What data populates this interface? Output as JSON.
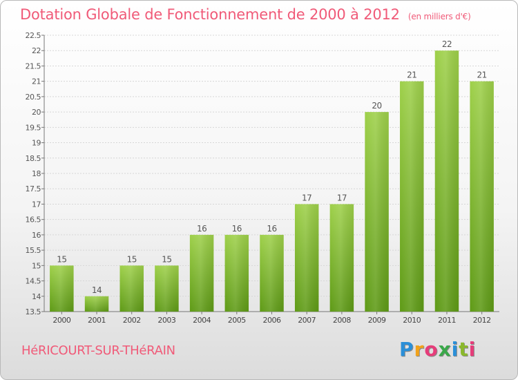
{
  "title": "Dotation Globale de Fonctionnement de 2000 à 2012",
  "unit": "(en milliers d'€)",
  "commune": "HéRICOURT-SUR-THéRAIN",
  "logo": {
    "letters": [
      "P",
      "r",
      "o",
      "x",
      "i",
      "t",
      "i"
    ],
    "colors": [
      "#2a8fd8",
      "#f2a21a",
      "#e63d7a",
      "#3aa84a",
      "#2a8fd8",
      "#8ab82c",
      "#e63d7a"
    ]
  },
  "colors": {
    "bar_top": "#9ed04a",
    "bar_bottom": "#5e9a16",
    "title": "#f05a78",
    "axis": "#777777"
  },
  "chart_data": {
    "type": "bar",
    "categories": [
      "2000",
      "2001",
      "2002",
      "2003",
      "2004",
      "2005",
      "2006",
      "2007",
      "2008",
      "2009",
      "2010",
      "2011",
      "2012"
    ],
    "values": [
      15,
      14,
      15,
      15,
      16,
      16,
      16,
      17,
      17,
      20,
      21,
      22,
      21
    ],
    "labels": [
      "15",
      "14",
      "15",
      "15",
      "16",
      "16",
      "16",
      "17",
      "17",
      "20",
      "21",
      "22",
      "21"
    ],
    "title": "Dotation Globale de Fonctionnement de 2000 à 2012",
    "xlabel": "",
    "ylabel": "",
    "ylim": [
      13.5,
      22.5
    ],
    "yticks": [
      "13.5",
      "14",
      "14.5",
      "15",
      "15.5",
      "16",
      "16.5",
      "17",
      "17.5",
      "18",
      "18.5",
      "19",
      "19.5",
      "20",
      "20.5",
      "21",
      "21.5",
      "22",
      "22.5"
    ],
    "grid": true
  }
}
